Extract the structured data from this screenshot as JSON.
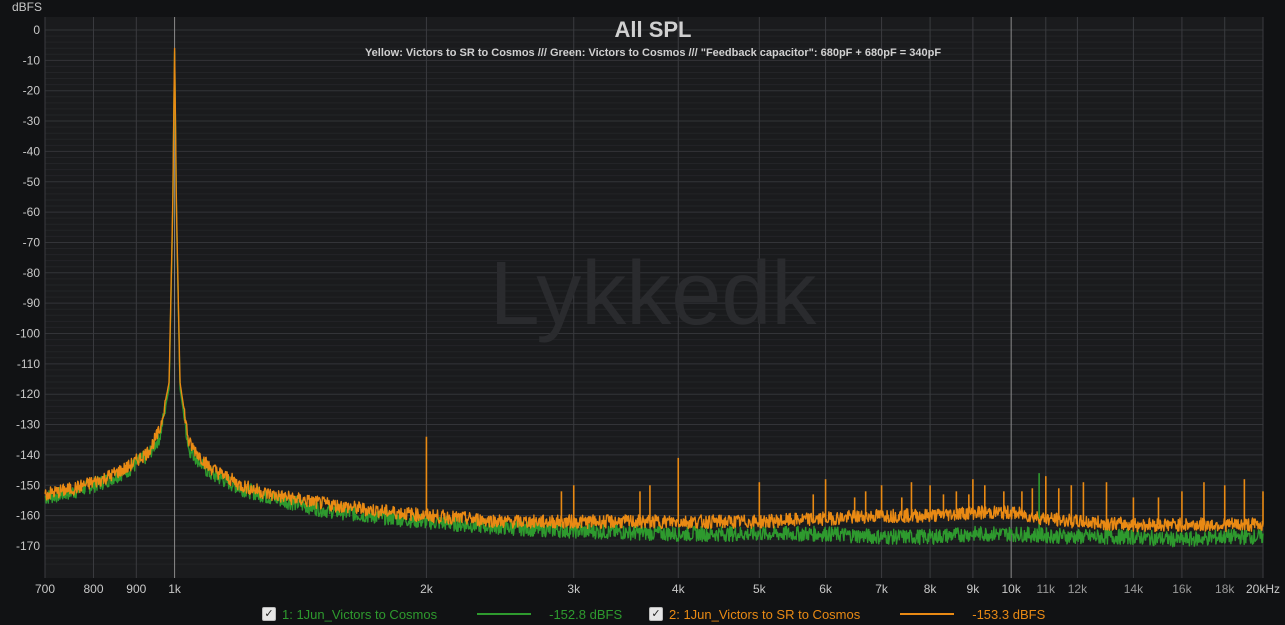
{
  "chart_data": {
    "type": "line",
    "title": "All SPL",
    "subtitle": "Yellow: Victors to SR to Cosmos /// Green: Victors to Cosmos /// \"Feedback capacitor\": 680pF + 680pF = 340pF",
    "watermark": "Lykkedk",
    "ylabel": "dBFS",
    "xlabel": "",
    "x_scale": "log",
    "xlim": [
      700,
      20000
    ],
    "ylim": [
      -180,
      5
    ],
    "grid": true,
    "x_ticks": [
      {
        "v": 700,
        "label": "700"
      },
      {
        "v": 800,
        "label": "800"
      },
      {
        "v": 900,
        "label": "900"
      },
      {
        "v": 1000,
        "label": "1k"
      },
      {
        "v": 2000,
        "label": "2k"
      },
      {
        "v": 3000,
        "label": "3k"
      },
      {
        "v": 4000,
        "label": "4k"
      },
      {
        "v": 5000,
        "label": "5k"
      },
      {
        "v": 6000,
        "label": "6k"
      },
      {
        "v": 7000,
        "label": "7k"
      },
      {
        "v": 8000,
        "label": "8k"
      },
      {
        "v": 9000,
        "label": "9k"
      },
      {
        "v": 10000,
        "label": "10k"
      },
      {
        "v": 11000,
        "label": "11k"
      },
      {
        "v": 12000,
        "label": "12k"
      },
      {
        "v": 14000,
        "label": "14k"
      },
      {
        "v": 16000,
        "label": "16k"
      },
      {
        "v": 18000,
        "label": "18k"
      },
      {
        "v": 20000,
        "label": "20kHz"
      }
    ],
    "y_ticks": [
      0,
      -10,
      -20,
      -30,
      -40,
      -50,
      -60,
      -70,
      -80,
      -90,
      -100,
      -110,
      -120,
      -130,
      -140,
      -150,
      -160,
      -170
    ],
    "series": [
      {
        "name": "1: 1Jun_Victors to Cosmos",
        "color": "#2e9a2e",
        "level": "-152.8 dBFS",
        "points": [
          [
            700,
            -154
          ],
          [
            760,
            -152
          ],
          [
            820,
            -149
          ],
          [
            880,
            -145
          ],
          [
            930,
            -140
          ],
          [
            960,
            -134
          ],
          [
            985,
            -118
          ],
          [
            995,
            -60
          ],
          [
            1000,
            -6
          ],
          [
            1005,
            -60
          ],
          [
            1015,
            -118
          ],
          [
            1040,
            -138
          ],
          [
            1100,
            -146
          ],
          [
            1200,
            -151
          ],
          [
            1300,
            -154
          ],
          [
            1500,
            -158
          ],
          [
            1700,
            -160
          ],
          [
            2000,
            -162
          ],
          [
            2500,
            -164
          ],
          [
            3000,
            -165
          ],
          [
            4000,
            -166
          ],
          [
            5000,
            -166
          ],
          [
            6000,
            -166
          ],
          [
            7000,
            -167
          ],
          [
            8000,
            -167
          ],
          [
            9000,
            -166
          ],
          [
            10000,
            -166
          ],
          [
            12000,
            -167
          ],
          [
            14000,
            -167
          ],
          [
            16000,
            -168
          ],
          [
            18000,
            -167
          ],
          [
            20000,
            -167
          ]
        ],
        "spikes": [
          [
            10800,
            -146
          ]
        ]
      },
      {
        "name": "2: 1Jun_Victors to SR to Cosmos",
        "color": "#e98a14",
        "level": "-153.3 dBFS",
        "points": [
          [
            700,
            -153
          ],
          [
            760,
            -151
          ],
          [
            820,
            -148
          ],
          [
            880,
            -144
          ],
          [
            930,
            -139
          ],
          [
            960,
            -132
          ],
          [
            985,
            -116
          ],
          [
            995,
            -58
          ],
          [
            1000,
            -5
          ],
          [
            1005,
            -58
          ],
          [
            1015,
            -116
          ],
          [
            1040,
            -136
          ],
          [
            1100,
            -144
          ],
          [
            1200,
            -150
          ],
          [
            1300,
            -153
          ],
          [
            1500,
            -156
          ],
          [
            1700,
            -158
          ],
          [
            2000,
            -160
          ],
          [
            2500,
            -162
          ],
          [
            3000,
            -162
          ],
          [
            4000,
            -162
          ],
          [
            5000,
            -162
          ],
          [
            6000,
            -161
          ],
          [
            7000,
            -160
          ],
          [
            8000,
            -160
          ],
          [
            9000,
            -159
          ],
          [
            10000,
            -159
          ],
          [
            11000,
            -161
          ],
          [
            12000,
            -162
          ],
          [
            14000,
            -163
          ],
          [
            16000,
            -163
          ],
          [
            18000,
            -163
          ],
          [
            20000,
            -163
          ]
        ],
        "spikes": [
          [
            2000,
            -134
          ],
          [
            2900,
            -152
          ],
          [
            3000,
            -150
          ],
          [
            3600,
            -152
          ],
          [
            3700,
            -150
          ],
          [
            4000,
            -141
          ],
          [
            5000,
            -149
          ],
          [
            5800,
            -153
          ],
          [
            6000,
            -148
          ],
          [
            6500,
            -154
          ],
          [
            6700,
            -152
          ],
          [
            7000,
            -150
          ],
          [
            7400,
            -154
          ],
          [
            7600,
            -149
          ],
          [
            8000,
            -150
          ],
          [
            8300,
            -153
          ],
          [
            8600,
            -152
          ],
          [
            8900,
            -153
          ],
          [
            9000,
            -148
          ],
          [
            9300,
            -150
          ],
          [
            9800,
            -152
          ],
          [
            10300,
            -152
          ],
          [
            10600,
            -151
          ],
          [
            11000,
            -147
          ],
          [
            11400,
            -151
          ],
          [
            11800,
            -150
          ],
          [
            12200,
            -149
          ],
          [
            13000,
            -149
          ],
          [
            14000,
            -154
          ],
          [
            15000,
            -154
          ],
          [
            16000,
            -152
          ],
          [
            17000,
            -149
          ],
          [
            18000,
            -150
          ],
          [
            19000,
            -148
          ],
          [
            20000,
            -152
          ]
        ]
      }
    ]
  },
  "legend": {
    "checkmark": "✓",
    "item1": {
      "label": "1: 1Jun_Victors to Cosmos",
      "value": "-152.8 dBFS"
    },
    "item2": {
      "label": "2: 1Jun_Victors to SR to Cosmos",
      "value": "-153.3 dBFS"
    }
  }
}
